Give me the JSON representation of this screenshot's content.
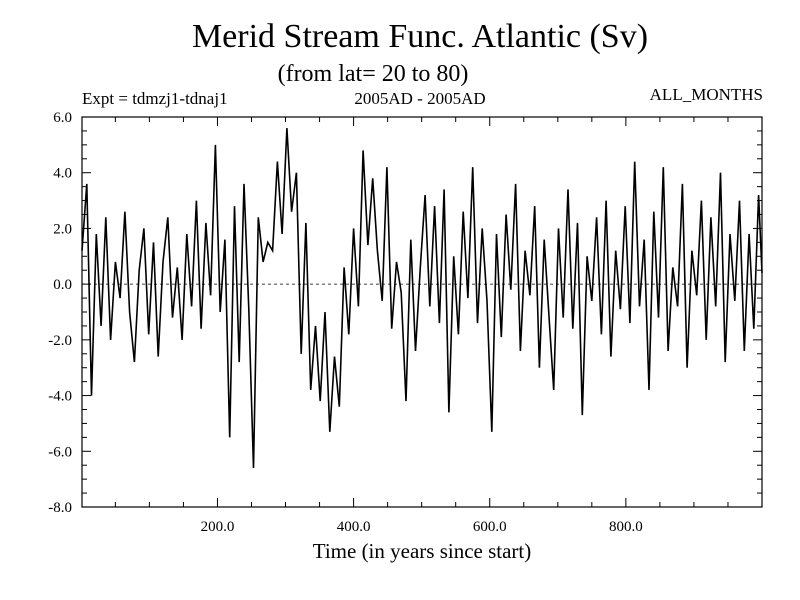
{
  "header": {
    "title": "Merid Stream Func. Atlantic (Sv)",
    "subtitle": "(from lat= 20 to 80)",
    "experiment": "Expt = tdmzj1-tdnaj1",
    "date_range": "2005AD - 2005AD",
    "months": "ALL_MONTHS"
  },
  "colors": {
    "line": "#000000",
    "background": "#ffffff",
    "axis": "#000000"
  },
  "chart_data": {
    "type": "line",
    "title": "Merid Stream Func. Atlantic (Sv)",
    "subtitle": "(from lat= 20 to 80)",
    "xlabel": "Time (in years since start)",
    "ylabel": "",
    "xlim": [
      1,
      1000
    ],
    "ylim": [
      -8.0,
      6.0
    ],
    "xticks": [
      200,
      400,
      600,
      800
    ],
    "xtick_labels": [
      "200.0",
      "400.0",
      "600.0",
      "800.0"
    ],
    "yticks": [
      -8,
      -6,
      -4,
      -2,
      0,
      2,
      4,
      6
    ],
    "ytick_labels": [
      "-8.0",
      "-6.0",
      "-4.0",
      "-2.0",
      "0.0",
      "2.0",
      "4.0",
      "6.0"
    ],
    "zero_line": "dashed",
    "grid": false,
    "series": [
      {
        "name": "Merid Stream Func. Atlantic",
        "x": [
          1,
          8,
          15,
          22,
          29,
          36,
          43,
          50,
          57,
          64,
          71,
          78,
          85,
          92,
          99,
          106,
          113,
          120,
          127,
          134,
          141,
          148,
          155,
          162,
          169,
          176,
          183,
          190,
          197,
          204,
          211,
          218,
          225,
          232,
          239,
          246,
          253,
          260,
          267,
          274,
          281,
          288,
          295,
          302,
          309,
          316,
          323,
          330,
          337,
          344,
          351,
          358,
          365,
          372,
          379,
          386,
          393,
          400,
          407,
          414,
          421,
          428,
          435,
          442,
          449,
          456,
          463,
          470,
          477,
          484,
          491,
          498,
          505,
          512,
          519,
          526,
          533,
          540,
          547,
          554,
          561,
          568,
          575,
          582,
          589,
          596,
          603,
          610,
          617,
          624,
          631,
          638,
          645,
          652,
          659,
          666,
          673,
          680,
          687,
          694,
          701,
          708,
          715,
          722,
          729,
          736,
          743,
          750,
          757,
          764,
          771,
          778,
          785,
          792,
          799,
          806,
          813,
          820,
          827,
          834,
          841,
          848,
          855,
          862,
          869,
          876,
          883,
          890,
          897,
          904,
          911,
          918,
          925,
          932,
          939,
          946,
          953,
          960,
          967,
          974,
          981,
          988,
          995,
          1000
        ],
        "y": [
          1.2,
          3.6,
          -4.0,
          1.8,
          -1.5,
          2.4,
          -2.0,
          0.8,
          -0.5,
          2.6,
          -1.0,
          -2.8,
          0.5,
          2.0,
          -1.8,
          1.5,
          -2.6,
          0.8,
          2.4,
          -1.2,
          0.6,
          -2.0,
          1.8,
          -0.8,
          3.0,
          -1.6,
          2.2,
          -0.4,
          5.0,
          -1.0,
          1.6,
          -5.5,
          2.8,
          -2.8,
          3.6,
          -0.9,
          -6.6,
          2.4,
          0.8,
          1.5,
          1.2,
          4.4,
          1.8,
          5.6,
          2.6,
          4.0,
          -2.5,
          2.2,
          -3.8,
          -1.5,
          -4.2,
          -1.0,
          -5.3,
          -2.6,
          -4.4,
          0.6,
          -1.8,
          2.0,
          -0.8,
          4.8,
          1.4,
          3.8,
          1.2,
          -0.6,
          4.2,
          -1.6,
          0.8,
          -0.3,
          -4.2,
          1.6,
          -2.4,
          0.6,
          3.2,
          -0.8,
          2.8,
          -1.4,
          3.4,
          -4.6,
          1.0,
          -1.8,
          2.6,
          -0.5,
          4.2,
          -1.4,
          2.0,
          -0.6,
          -5.3,
          1.8,
          -1.9,
          2.5,
          -0.2,
          3.6,
          -2.4,
          1.2,
          -0.4,
          2.8,
          -3.0,
          1.6,
          -1.1,
          -3.8,
          2.0,
          -1.2,
          3.4,
          -1.6,
          2.2,
          -4.7,
          1.0,
          -0.6,
          2.4,
          -1.8,
          3.0,
          -2.6,
          1.2,
          -0.9,
          2.8,
          -1.4,
          4.4,
          -0.8,
          1.6,
          -3.8,
          2.6,
          -1.2,
          4.2,
          -2.4,
          0.6,
          -0.8,
          3.6,
          -3.0,
          1.2,
          -0.4,
          3.0,
          -2.0,
          2.4,
          -0.8,
          4.0,
          -2.8,
          1.8,
          -0.6,
          3.0,
          -2.4,
          1.8,
          -1.6,
          3.2,
          0.4
        ]
      }
    ]
  }
}
